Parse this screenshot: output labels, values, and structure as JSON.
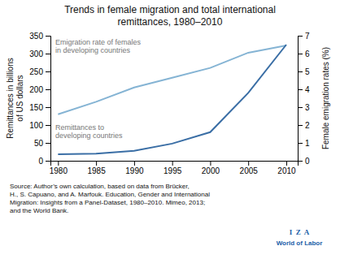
{
  "chart_data": {
    "type": "line",
    "title": "Trends in female migration and total international\nremittances, 1980–2010",
    "x": [
      1980,
      1985,
      1990,
      1995,
      2000,
      2005,
      2010
    ],
    "xlim": [
      1979,
      2011.5
    ],
    "xticks": [
      1980,
      1985,
      1990,
      1995,
      2000,
      2005,
      2010
    ],
    "ylabel": "Remittances in billions\nof US dollars",
    "y2label": "Female emigration rates (%)",
    "ylim": [
      0,
      350
    ],
    "yticks": [
      0,
      50,
      100,
      150,
      200,
      250,
      300,
      350
    ],
    "y2lim": [
      0,
      7
    ],
    "y2ticks": [
      0,
      1,
      2,
      3,
      4,
      5,
      6,
      7
    ],
    "series": [
      {
        "name": "Emigration rate of females\nin developing countries",
        "color": "#85b4d4",
        "axis": "y2",
        "values": [
          2.6,
          3.3,
          4.1,
          4.65,
          5.2,
          6.05,
          6.45
        ]
      },
      {
        "name": "Remittances to\ndeveloping countries",
        "color": "#3a6ea5",
        "axis": "y",
        "values": [
          18,
          20,
          28,
          48,
          80,
          190,
          325
        ]
      }
    ],
    "annotations": [
      "Source: Author’s own calculation, based on data from Brücker,\nH., S. Capuano, and A. Marfouk. Education, Gender and International\nMigration: Insights from a Panel-Dataset, 1980–2010. Mimeo, 2013;\nand the World Bank.",
      "I  Z  A",
      "World of Labor"
    ]
  }
}
